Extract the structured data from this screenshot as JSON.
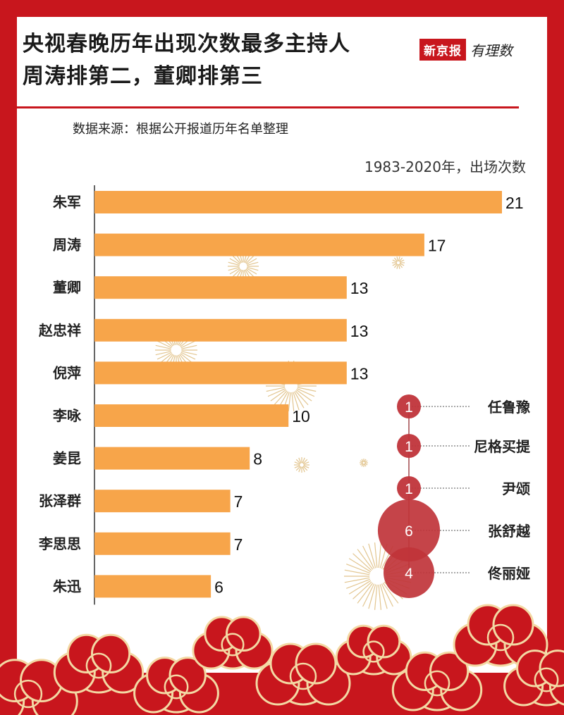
{
  "header": {
    "title_line1": "央视春晚历年出现次数最多主持人",
    "title_line2": "周涛排第二，董卿排第三",
    "logo_main": "新京报",
    "logo_sub": "有理数",
    "source": "数据来源：根据公开报道历年名单整理",
    "unit_note": "1983-2020年，出场次数"
  },
  "colors": {
    "frame": "#c8161d",
    "bar": "#f7a54a",
    "bubble": "#c0343a",
    "gold": "#d9b26a"
  },
  "chart_data": [
    {
      "type": "bar",
      "orientation": "horizontal",
      "categories": [
        "朱军",
        "周涛",
        "董卿",
        "赵忠祥",
        "倪萍",
        "李咏",
        "姜昆",
        "张泽群",
        "李思思",
        "朱迅"
      ],
      "values": [
        21,
        17,
        13,
        13,
        13,
        10,
        8,
        7,
        7,
        6
      ],
      "data_labels": [
        "21",
        "17",
        "13",
        "13",
        "13",
        "10",
        "8",
        "7",
        "7",
        "6"
      ],
      "xlim": [
        0,
        21
      ],
      "grid": false
    },
    {
      "type": "scatter",
      "encoding": "bubble size = count",
      "categories": [
        "任鲁豫",
        "尼格买提",
        "尹颂",
        "张舒越",
        "佟丽娅"
      ],
      "values": [
        1,
        1,
        1,
        6,
        4
      ],
      "data_labels": [
        "1",
        "1",
        "1",
        "6",
        "4"
      ]
    }
  ]
}
